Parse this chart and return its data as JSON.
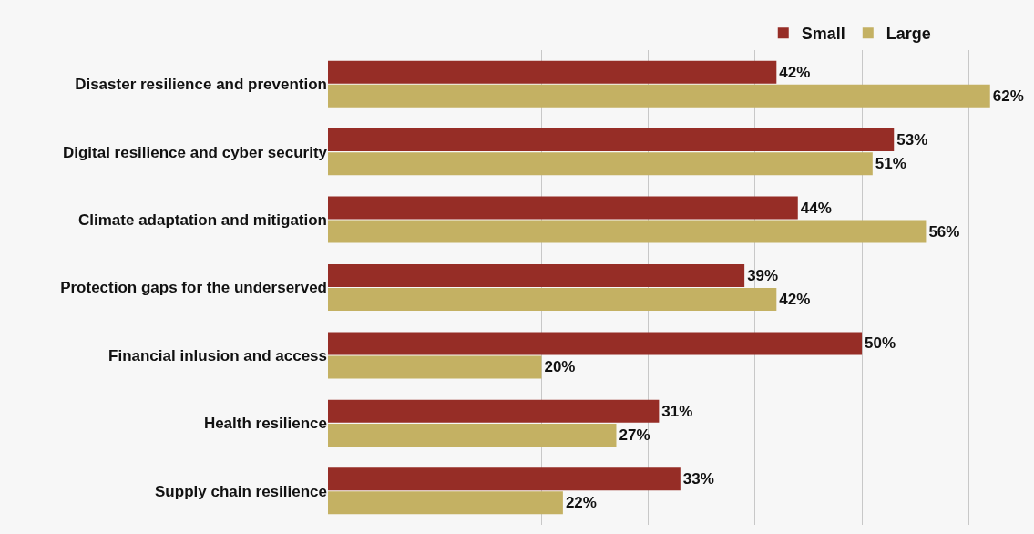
{
  "chart_data": {
    "type": "bar",
    "orientation": "horizontal",
    "categories": [
      "Disaster resilience and prevention",
      "Digital resilience and cyber security",
      "Climate adaptation and mitigation",
      "Protection gaps for the underserved",
      "Financial inlusion and access",
      "Health resilience",
      "Supply chain resilience"
    ],
    "series": [
      {
        "name": "Small",
        "color": "#962d26",
        "values": [
          42,
          53,
          44,
          39,
          50,
          31,
          33
        ],
        "value_labels": [
          "42%",
          "53%",
          "44%",
          "39%",
          "50%",
          "31%",
          "33%"
        ]
      },
      {
        "name": "Large",
        "color": "#c4b163",
        "values": [
          62,
          51,
          56,
          42,
          20,
          27,
          22
        ],
        "value_labels": [
          "62%",
          "51%",
          "56%",
          "42%",
          "20%",
          "27%",
          "22%"
        ]
      }
    ],
    "xticks": [
      {
        "value": 10,
        "label": null
      },
      {
        "value": 20,
        "label": null
      },
      {
        "value": 30,
        "label": null
      },
      {
        "value": 40,
        "label": null
      },
      {
        "value": 50,
        "label": null
      },
      {
        "value": 60,
        "label": null
      }
    ],
    "grid": "x",
    "legend": "top",
    "tick_labels": "y"
  }
}
